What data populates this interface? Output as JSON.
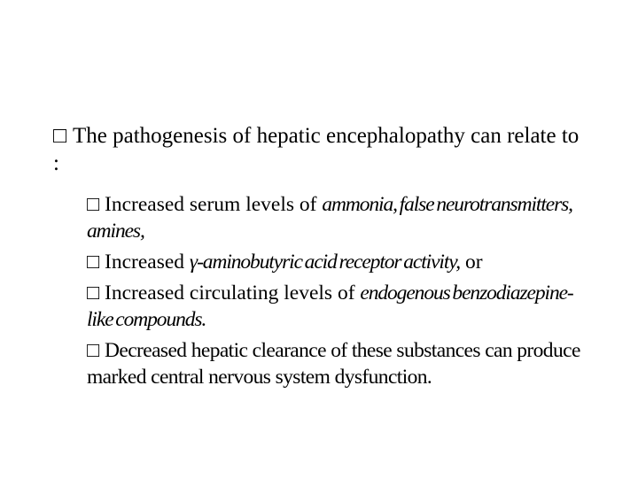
{
  "colors": {
    "background": "#ffffff",
    "text": "#000000"
  },
  "typography": {
    "font_family": "Times New Roman",
    "main_fontsize_pt": 19,
    "sub_fontsize_pt": 18
  },
  "glyphs": {
    "bullet_main": "□",
    "bullet_sub": "□"
  },
  "main": {
    "line": "The pathogenesis of hepatic encephalopathy can relate to :"
  },
  "subs": [
    {
      "prefix": "Increased serum levels of ",
      "italic": "ammonia, false neurotransmitters, amines,",
      "suffix": ""
    },
    {
      "prefix": "Increased ",
      "italic": "γ-aminobutyric acid receptor activity,",
      "suffix": " or"
    },
    {
      "prefix": "Increased circulating levels of ",
      "italic": "endogenous benzodiazepine-like compounds.",
      "suffix": ""
    },
    {
      "prefix": "Decreased hepatic clearance of these substances can produce marked central nervous system dysfunction.",
      "italic": "",
      "suffix": ""
    }
  ]
}
